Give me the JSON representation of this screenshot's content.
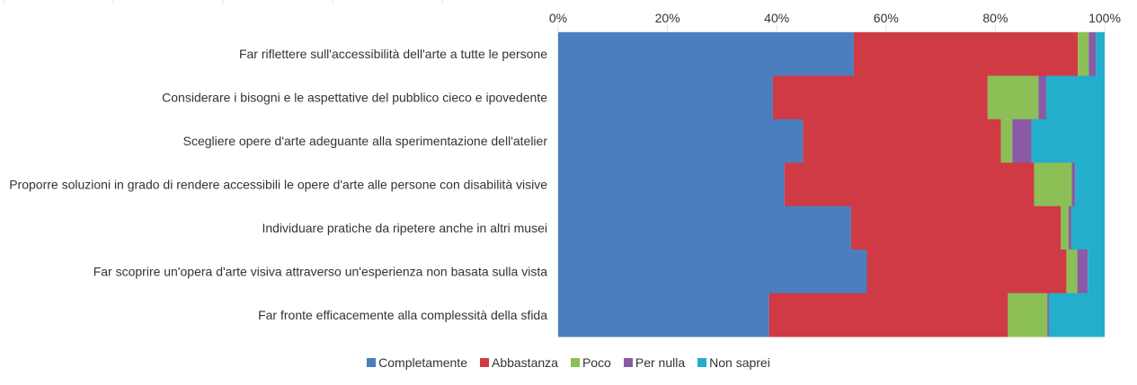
{
  "chart_data": {
    "type": "bar",
    "orientation": "horizontal",
    "stacked": "percent",
    "title": "",
    "xlabel": "",
    "ylabel": "",
    "xlim": [
      0,
      100
    ],
    "x_ticks": [
      "0%",
      "20%",
      "40%",
      "60%",
      "80%",
      "100%"
    ],
    "categories": [
      "Far riflettere sull'accessibilità dell'arte a tutte le persone",
      "Considerare i bisogni e le aspettative del pubblico cieco e ipovedente",
      "Scegliere opere d'arte adeguante alla sperimentazione dell'atelier",
      "Proporre soluzioni in grado di rendere accessibili le opere d'arte alle persone con disabilità visive",
      "Individuare pratiche da ripetere anche in altri musei",
      "Far scoprire un'opera d'arte visiva attraverso un'esperienza non basata sulla vista",
      "Far fronte efficacemente alla complessità della sfida"
    ],
    "series": [
      {
        "name": "Completamente",
        "color": "#4a7ebf",
        "values": [
          54.1,
          39.3,
          44.8,
          41.4,
          53.6,
          56.5,
          38.6
        ]
      },
      {
        "name": "Abbastanza",
        "color": "#cf3a45",
        "values": [
          41.0,
          39.3,
          36.2,
          45.7,
          38.4,
          36.5,
          43.7
        ]
      },
      {
        "name": "Poco",
        "color": "#8cbf55",
        "values": [
          2.0,
          9.3,
          2.1,
          6.9,
          1.4,
          2.0,
          7.2
        ]
      },
      {
        "name": "Per nulla",
        "color": "#8a5aa6",
        "values": [
          1.3,
          1.4,
          3.5,
          0.6,
          0.5,
          1.9,
          0.3
        ]
      },
      {
        "name": "Non saprei",
        "color": "#23aecb",
        "values": [
          1.6,
          10.7,
          13.4,
          5.4,
          6.1,
          3.1,
          10.2
        ]
      }
    ],
    "grid": true,
    "legend_position": "bottom"
  }
}
